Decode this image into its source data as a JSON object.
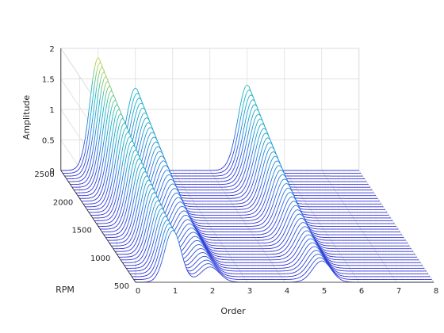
{
  "chart_data": {
    "type": "waterfall-3d",
    "xlabel": "Order",
    "ylabel": "RPM",
    "zlabel": "Amplitude",
    "x_ticks": [
      0,
      1,
      2,
      3,
      4,
      5,
      6,
      7,
      8
    ],
    "y_ticks": [
      500,
      1000,
      1500,
      2000,
      2500
    ],
    "z_ticks": [
      0,
      0.5,
      1,
      1.5,
      2
    ],
    "xlim": [
      0,
      8
    ],
    "ylim": [
      500,
      2500
    ],
    "zlim": [
      0,
      2
    ],
    "grid": true,
    "colormap": "parula",
    "rpm_range": [
      500,
      2500
    ],
    "rpm_step": 50,
    "peaks": [
      {
        "order": 1,
        "amp_at_500rpm": 0.85,
        "amp_at_2500rpm": 1.85
      },
      {
        "order": 2,
        "amp_at_500rpm": 0.25,
        "amp_at_2500rpm": 1.35
      },
      {
        "order": 5,
        "amp_at_500rpm": 0.35,
        "amp_at_2500rpm": 1.4
      }
    ],
    "colors": {
      "low": "#2c2cd6",
      "mid": "#17b3c2",
      "high": "#f5e31a",
      "grid": "#d9d9d9",
      "axis": "#262626"
    }
  }
}
